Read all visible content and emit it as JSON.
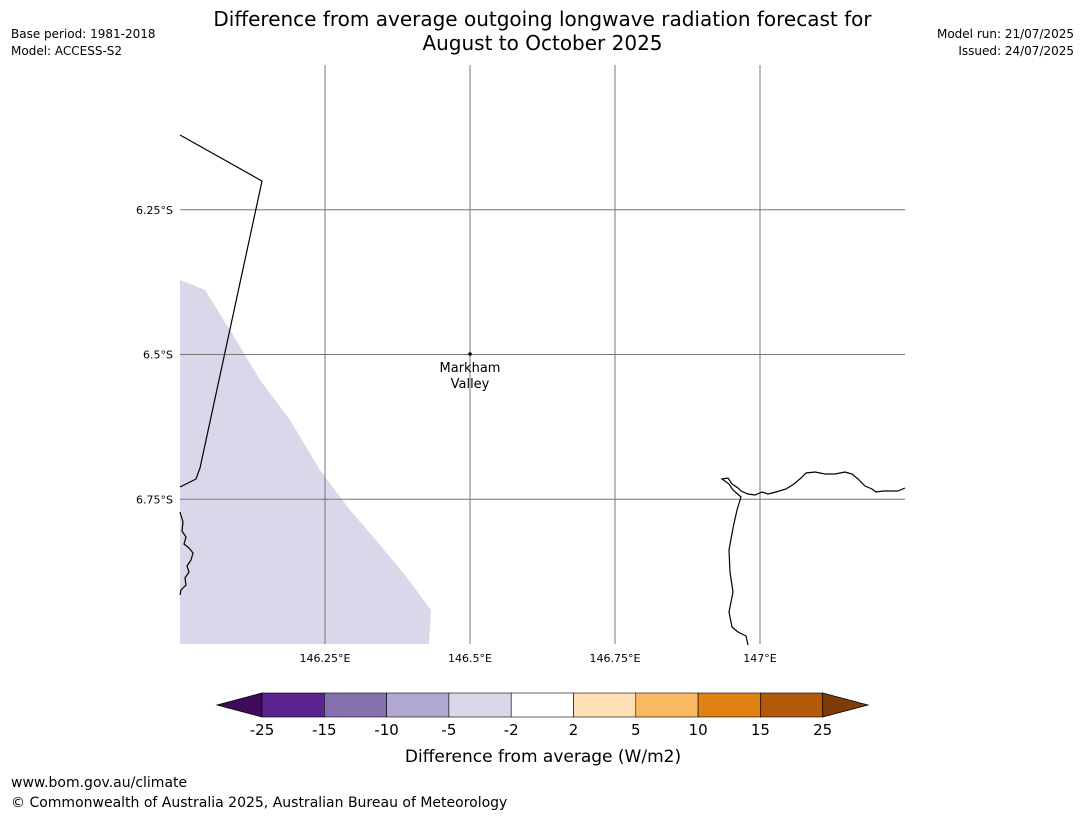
{
  "title_line1": "Difference from average outgoing longwave radiation forecast for",
  "title_line2": "August to October 2025",
  "meta_left": {
    "base_period": "Base period: 1981-2018",
    "model": "Model: ACCESS-S2"
  },
  "meta_right": {
    "model_run": "Model run: 21/07/2025",
    "issued": "Issued: 24/07/2025"
  },
  "map": {
    "lon_ticks": [
      {
        "value": 146.25,
        "label": "146.25°E"
      },
      {
        "value": 146.5,
        "label": "146.5°E"
      },
      {
        "value": 146.75,
        "label": "146.75°E"
      },
      {
        "value": 147.0,
        "label": "147°E"
      }
    ],
    "lat_ticks": [
      {
        "value": -6.25,
        "label": "6.25°S"
      },
      {
        "value": -6.5,
        "label": "6.5°S"
      },
      {
        "value": -6.75,
        "label": "6.75°S"
      }
    ],
    "extent": {
      "lon_min": 146.0,
      "lon_max": 147.25,
      "lat_min": -7.0,
      "lat_max": -6.0
    },
    "location": {
      "name_line1": "Markham",
      "name_line2": "Valley",
      "lon": 146.5,
      "lat": -6.5
    },
    "shaded_region_color": "#d8d8ea",
    "shaded_region_category": "-5 to -2"
  },
  "legend": {
    "title": "Difference from average (W/m2)",
    "tick_labels": [
      "-25",
      "-15",
      "-10",
      "-5",
      "-2",
      "2",
      "5",
      "10",
      "15",
      "25"
    ],
    "colors": [
      "#3f0a5c",
      "#5a2590",
      "#8571b0",
      "#b1a8d1",
      "#d8d8ea",
      "#ffffff",
      "#fddfb4",
      "#fbb863",
      "#e08213",
      "#b45909",
      "#7f3b08"
    ]
  },
  "footer": {
    "url": "www.bom.gov.au/climate",
    "copyright": "© Commonwealth of Australia 2025, Australian Bureau of Meteorology"
  }
}
